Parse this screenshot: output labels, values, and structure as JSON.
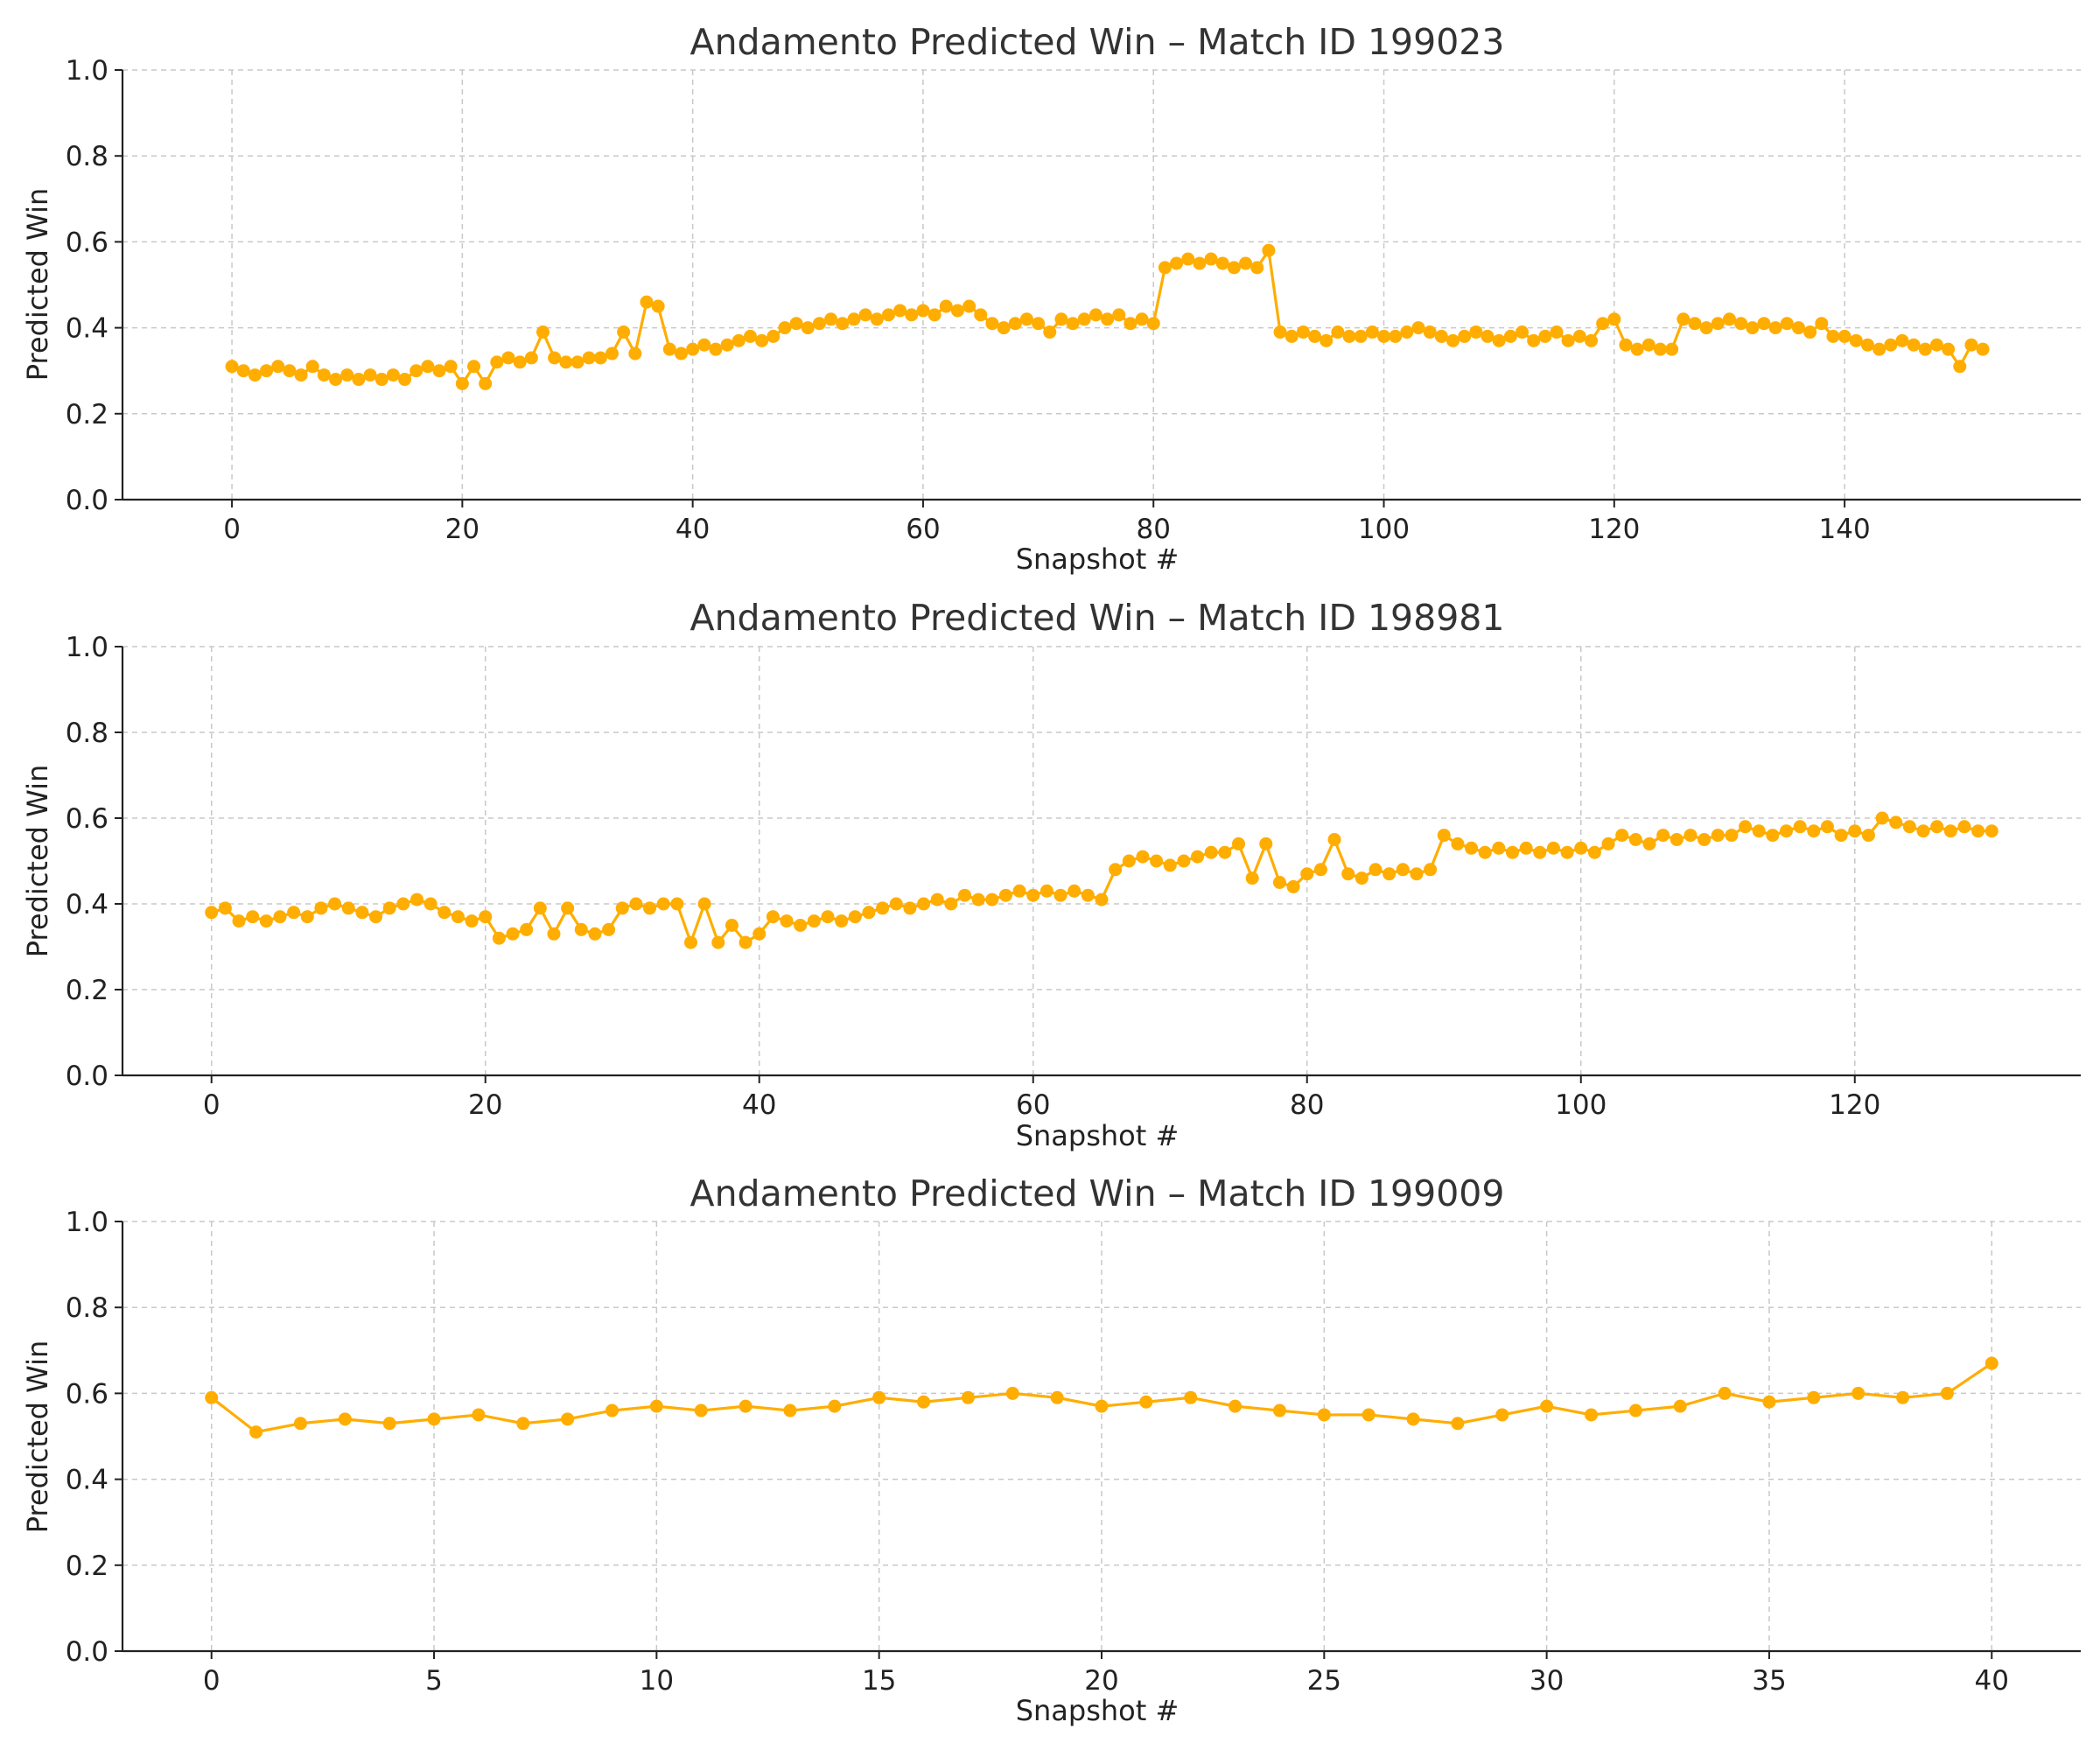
{
  "colors": {
    "series": "#ffad00",
    "text": "#333333",
    "grid": "#c8c8c8"
  },
  "chart_data": [
    {
      "type": "line",
      "title": "Andamento Predicted Win – Match ID 199023",
      "xlabel": "Snapshot #",
      "ylabel": "Predicted Win",
      "xlim": [
        -9.5,
        160.5
      ],
      "ylim": [
        0,
        1
      ],
      "xticks": [
        0,
        20,
        40,
        60,
        80,
        100,
        120,
        140
      ],
      "yticks": [
        0.0,
        0.2,
        0.4,
        0.6,
        0.8,
        1.0
      ],
      "ytick_labels": [
        "0.0",
        "0.2",
        "0.4",
        "0.6",
        "0.8",
        "1.0"
      ],
      "grid": true,
      "series": [
        {
          "color": "#ffad00",
          "marker": "circle",
          "values": [
            0.31,
            0.3,
            0.29,
            0.3,
            0.31,
            0.3,
            0.29,
            0.31,
            0.29,
            0.28,
            0.29,
            0.28,
            0.29,
            0.28,
            0.29,
            0.28,
            0.3,
            0.31,
            0.3,
            0.31,
            0.27,
            0.31,
            0.27,
            0.32,
            0.33,
            0.32,
            0.33,
            0.39,
            0.33,
            0.32,
            0.32,
            0.33,
            0.33,
            0.34,
            0.39,
            0.34,
            0.46,
            0.45,
            0.35,
            0.34,
            0.35,
            0.36,
            0.35,
            0.36,
            0.37,
            0.38,
            0.37,
            0.38,
            0.4,
            0.41,
            0.4,
            0.41,
            0.42,
            0.41,
            0.42,
            0.43,
            0.42,
            0.43,
            0.44,
            0.43,
            0.44,
            0.43,
            0.45,
            0.44,
            0.45,
            0.43,
            0.41,
            0.4,
            0.41,
            0.42,
            0.41,
            0.39,
            0.42,
            0.41,
            0.42,
            0.43,
            0.42,
            0.43,
            0.41,
            0.42,
            0.41,
            0.54,
            0.55,
            0.56,
            0.55,
            0.56,
            0.55,
            0.54,
            0.55,
            0.54,
            0.58,
            0.39,
            0.38,
            0.39,
            0.38,
            0.37,
            0.39,
            0.38,
            0.38,
            0.39,
            0.38,
            0.38,
            0.39,
            0.4,
            0.39,
            0.38,
            0.37,
            0.38,
            0.39,
            0.38,
            0.37,
            0.38,
            0.39,
            0.37,
            0.38,
            0.39,
            0.37,
            0.38,
            0.37,
            0.41,
            0.42,
            0.36,
            0.35,
            0.36,
            0.35,
            0.35,
            0.42,
            0.41,
            0.4,
            0.41,
            0.42,
            0.41,
            0.4,
            0.41,
            0.4,
            0.41,
            0.4,
            0.39,
            0.41,
            0.38,
            0.38,
            0.37,
            0.36,
            0.35,
            0.36,
            0.37,
            0.36,
            0.35,
            0.36,
            0.35,
            0.31,
            0.36,
            0.35
          ]
        }
      ]
    },
    {
      "type": "line",
      "title": "Andamento Predicted Win – Match ID 198981",
      "xlabel": "Snapshot #",
      "ylabel": "Predicted Win",
      "xlim": [
        -6.5,
        136.5
      ],
      "ylim": [
        0,
        1
      ],
      "xticks": [
        0,
        20,
        40,
        60,
        80,
        100,
        120
      ],
      "yticks": [
        0.0,
        0.2,
        0.4,
        0.6,
        0.8,
        1.0
      ],
      "ytick_labels": [
        "0.0",
        "0.2",
        "0.4",
        "0.6",
        "0.8",
        "1.0"
      ],
      "grid": true,
      "series": [
        {
          "color": "#ffad00",
          "marker": "circle",
          "values": [
            0.38,
            0.39,
            0.36,
            0.37,
            0.36,
            0.37,
            0.38,
            0.37,
            0.39,
            0.4,
            0.39,
            0.38,
            0.37,
            0.39,
            0.4,
            0.41,
            0.4,
            0.38,
            0.37,
            0.36,
            0.37,
            0.32,
            0.33,
            0.34,
            0.39,
            0.33,
            0.39,
            0.34,
            0.33,
            0.34,
            0.39,
            0.4,
            0.39,
            0.4,
            0.4,
            0.31,
            0.4,
            0.31,
            0.35,
            0.31,
            0.33,
            0.37,
            0.36,
            0.35,
            0.36,
            0.37,
            0.36,
            0.37,
            0.38,
            0.39,
            0.4,
            0.39,
            0.4,
            0.41,
            0.4,
            0.42,
            0.41,
            0.41,
            0.42,
            0.43,
            0.42,
            0.43,
            0.42,
            0.43,
            0.42,
            0.41,
            0.48,
            0.5,
            0.51,
            0.5,
            0.49,
            0.5,
            0.51,
            0.52,
            0.52,
            0.54,
            0.46,
            0.54,
            0.45,
            0.44,
            0.47,
            0.48,
            0.55,
            0.47,
            0.46,
            0.48,
            0.47,
            0.48,
            0.47,
            0.48,
            0.56,
            0.54,
            0.53,
            0.52,
            0.53,
            0.52,
            0.53,
            0.52,
            0.53,
            0.52,
            0.53,
            0.52,
            0.54,
            0.56,
            0.55,
            0.54,
            0.56,
            0.55,
            0.56,
            0.55,
            0.56,
            0.56,
            0.58,
            0.57,
            0.56,
            0.57,
            0.58,
            0.57,
            0.58,
            0.56,
            0.57,
            0.56,
            0.6,
            0.59,
            0.58,
            0.57,
            0.58,
            0.57,
            0.58,
            0.57,
            0.57
          ]
        }
      ]
    },
    {
      "type": "line",
      "title": "Andamento Predicted Win – Match ID 199009",
      "xlabel": "Snapshot #",
      "ylabel": "Predicted Win",
      "xlim": [
        -2.0,
        42.0
      ],
      "ylim": [
        0,
        1
      ],
      "xticks": [
        0,
        5,
        10,
        15,
        20,
        25,
        30,
        35,
        40
      ],
      "yticks": [
        0.0,
        0.2,
        0.4,
        0.6,
        0.8,
        1.0
      ],
      "ytick_labels": [
        "0.0",
        "0.2",
        "0.4",
        "0.6",
        "0.8",
        "1.0"
      ],
      "grid": true,
      "series": [
        {
          "color": "#ffad00",
          "marker": "circle",
          "values": [
            0.59,
            0.51,
            0.53,
            0.54,
            0.53,
            0.54,
            0.55,
            0.53,
            0.54,
            0.56,
            0.57,
            0.56,
            0.57,
            0.56,
            0.57,
            0.59,
            0.58,
            0.59,
            0.6,
            0.59,
            0.57,
            0.58,
            0.59,
            0.57,
            0.56,
            0.55,
            0.55,
            0.54,
            0.53,
            0.55,
            0.57,
            0.55,
            0.56,
            0.57,
            0.6,
            0.58,
            0.59,
            0.6,
            0.59,
            0.6,
            0.67
          ]
        }
      ]
    }
  ]
}
